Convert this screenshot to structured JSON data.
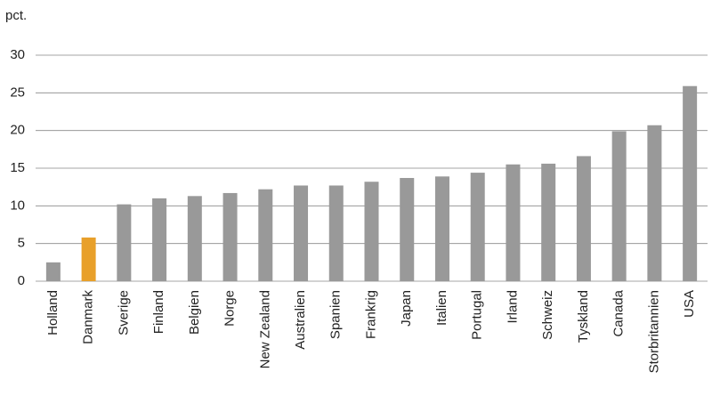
{
  "chart_data": {
    "type": "bar",
    "y_unit": "pct.",
    "categories": [
      "Holland",
      "Danmark",
      "Sverige",
      "Finland",
      "Belgien",
      "Norge",
      "New Zealand",
      "Australien",
      "Spanien",
      "Frankrig",
      "Japan",
      "Italien",
      "Portugal",
      "Irland",
      "Schweiz",
      "Tyskland",
      "Canada",
      "Storbritannien",
      "USA"
    ],
    "values": [
      2.5,
      5.8,
      10.2,
      11.0,
      11.3,
      11.7,
      12.2,
      12.7,
      12.7,
      13.2,
      13.7,
      13.9,
      14.4,
      15.5,
      15.6,
      16.6,
      19.9,
      20.7,
      25.9
    ],
    "colors": [
      "#999999",
      "#e8a02a",
      "#999999",
      "#999999",
      "#999999",
      "#999999",
      "#999999",
      "#999999",
      "#999999",
      "#999999",
      "#999999",
      "#999999",
      "#999999",
      "#999999",
      "#999999",
      "#999999",
      "#999999",
      "#999999",
      "#999999"
    ],
    "ylim": [
      0,
      30
    ],
    "yticks": [
      0,
      5,
      10,
      15,
      20,
      25,
      30
    ],
    "grid": true
  }
}
